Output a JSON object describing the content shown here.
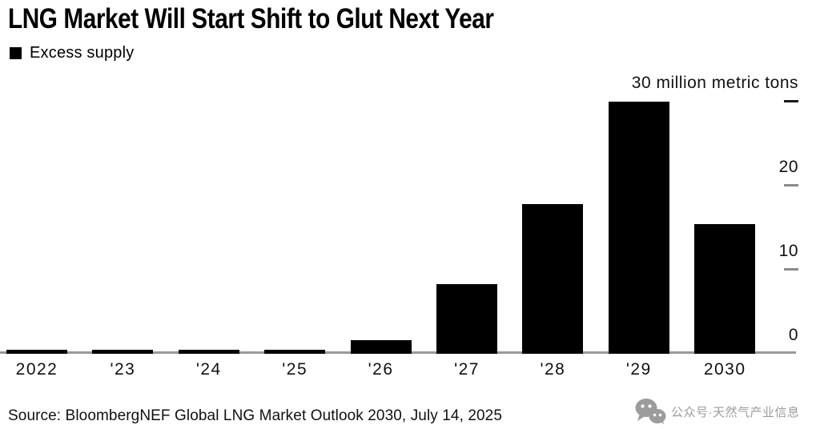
{
  "title": "LNG Market Will Start Shift to Glut Next Year",
  "legend": {
    "label": "Excess supply",
    "swatch_color": "#000000"
  },
  "chart_data": {
    "type": "bar",
    "title": "LNG Market Will Start Shift to Glut Next Year",
    "series_name": "Excess supply",
    "categories": [
      "2022",
      "'23",
      "'24",
      "'25",
      "'26",
      "'27",
      "'28",
      "'29",
      "2030"
    ],
    "values": [
      0.3,
      0.3,
      0.3,
      0.3,
      1.6,
      8.3,
      17.8,
      30,
      15.4
    ],
    "unit_label": "30 million metric tons",
    "ylabel": "million metric tons",
    "yticks": [
      0,
      10,
      20,
      30
    ],
    "ylim": [
      0,
      30
    ],
    "bar_color": "#000000",
    "axis_color": "#999999",
    "grid": false,
    "legend_position": "top-left",
    "ytick_side": "right"
  },
  "axis": {
    "ticks": [
      {
        "value": 30,
        "label": "30 million metric tons",
        "dash_color": "#1a1a1a"
      },
      {
        "value": 20,
        "label": "20",
        "dash_color": "#8a8a8a"
      },
      {
        "value": 10,
        "label": "10",
        "dash_color": "#8a8a8a"
      },
      {
        "value": 0,
        "label": "0",
        "dash_color": ""
      }
    ]
  },
  "footer": {
    "source": "Source: BloombergNEF Global LNG Market Outlook 2030, July 14, 2025",
    "watermark": {
      "icon": "wechat-icon",
      "text": "公众号·天然气产业信息",
      "color": "#9c9c9c"
    }
  }
}
